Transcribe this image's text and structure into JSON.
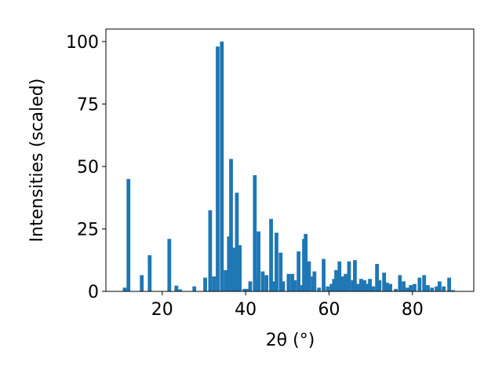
{
  "chart_data": {
    "type": "bar",
    "xlabel": "2θ (°)",
    "ylabel": "Intensities (scaled)",
    "color": "#1f77b4",
    "x": [
      11.0,
      11.9,
      15.1,
      17.0,
      21.7,
      23.4,
      24.3,
      27.7,
      30.3,
      31.5,
      32.4,
      33.3,
      34.3,
      35.2,
      36.0,
      36.5,
      37.1,
      37.9,
      38.6,
      39.7,
      40.5,
      41.1,
      42.2,
      42.6,
      43.1,
      44.1,
      45.0,
      46.1,
      46.7,
      47.4,
      48.4,
      49.0,
      50.3,
      51.2,
      51.8,
      52.7,
      53.6,
      54.0,
      54.4,
      55.2,
      56.1,
      56.5,
      57.6,
      58.7,
      59.7,
      60.6,
      61.2,
      61.7,
      62.5,
      63.2,
      64.0,
      64.8,
      65.7,
      66.2,
      67.0,
      67.7,
      68.5,
      69.2,
      69.8,
      70.6,
      71.5,
      72.1,
      73.2,
      73.9,
      74.7,
      76.0,
      77.0,
      77.9,
      78.8,
      79.6,
      80.5,
      81.7,
      82.8,
      83.7,
      84.7,
      85.8,
      86.5,
      87.5,
      88.8,
      89.7
    ],
    "values": [
      1.5,
      45,
      6.5,
      14.5,
      21,
      2.3,
      0.8,
      2,
      5.5,
      32.5,
      6,
      98,
      100,
      8.5,
      22,
      53,
      17.5,
      39.5,
      18.5,
      1,
      1,
      4,
      46.5,
      5.5,
      24,
      8,
      6.5,
      29,
      4,
      23.5,
      15.5,
      4,
      7,
      7,
      4.5,
      16,
      2.5,
      21,
      23,
      12,
      6,
      8,
      1.5,
      13,
      2,
      3,
      5,
      8.5,
      12,
      6,
      7,
      12,
      4.5,
      12.5,
      3,
      5,
      4.5,
      3,
      5,
      2,
      11,
      4.5,
      7.5,
      3.5,
      3,
      1,
      6.5,
      4,
      1.5,
      2.5,
      3,
      5.5,
      6.5,
      2.5,
      1.5,
      2,
      4,
      2,
      5.5,
      0.5
    ],
    "xlim": [
      6.5,
      94.7
    ],
    "ylim": [
      0,
      105
    ],
    "xticks": [
      20,
      40,
      60,
      80
    ],
    "yticks": [
      0,
      25,
      50,
      75,
      100
    ]
  }
}
